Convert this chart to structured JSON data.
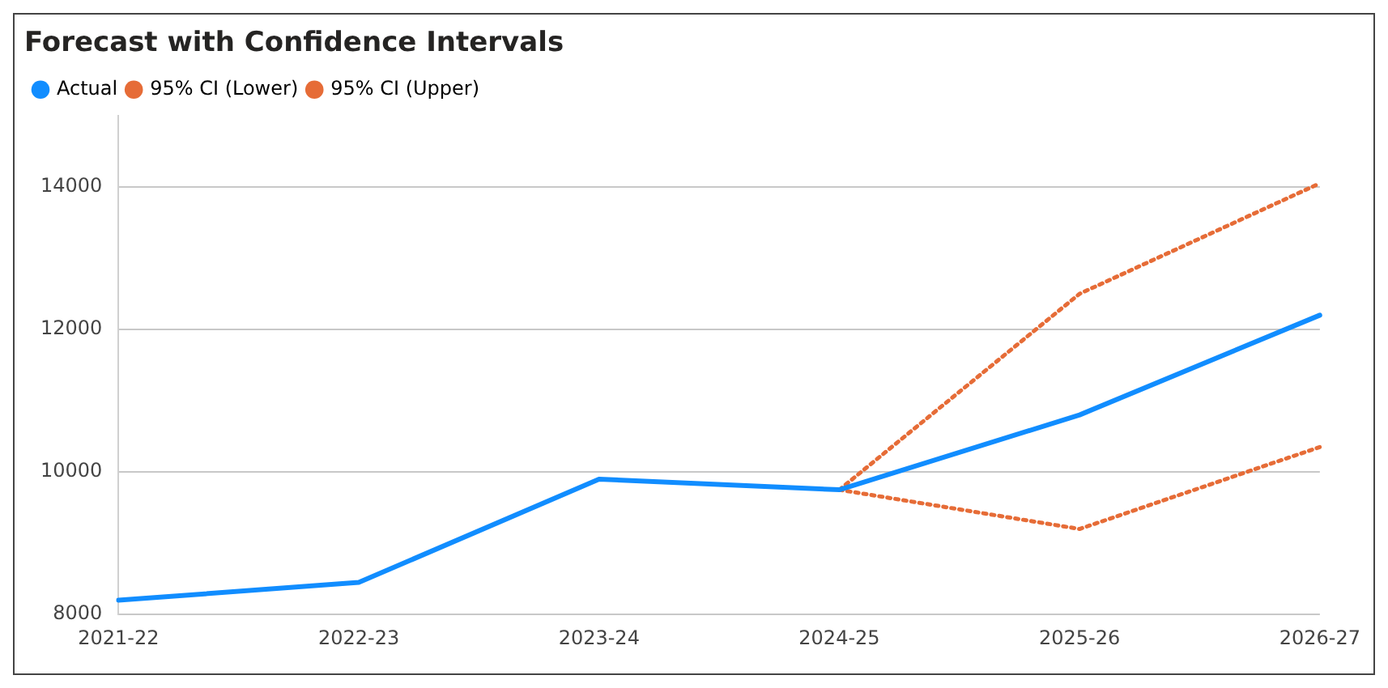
{
  "chart_data": {
    "type": "line",
    "title": "Forecast with Confidence Intervals",
    "categories": [
      "2021-22",
      "2022-23",
      "2023-24",
      "2024-25",
      "2025-26",
      "2026-27"
    ],
    "series": [
      {
        "name": "Actual",
        "color": "#118dff",
        "line_style": "solid",
        "values": [
          8200,
          8450,
          9900,
          9750,
          10800,
          12200
        ]
      },
      {
        "name": "95% CI (Lower)",
        "color": "#e66c37",
        "line_style": "dotted",
        "values": [
          null,
          null,
          null,
          9750,
          9200,
          10350
        ]
      },
      {
        "name": "95% CI (Upper)",
        "color": "#e66c37",
        "line_style": "dotted",
        "values": [
          null,
          null,
          null,
          9750,
          12500,
          14050
        ]
      }
    ],
    "ylim": [
      8000,
      15000
    ],
    "yticks": [
      8000,
      10000,
      12000,
      14000
    ],
    "grid": "y",
    "legend": "top left",
    "marker": "none"
  }
}
